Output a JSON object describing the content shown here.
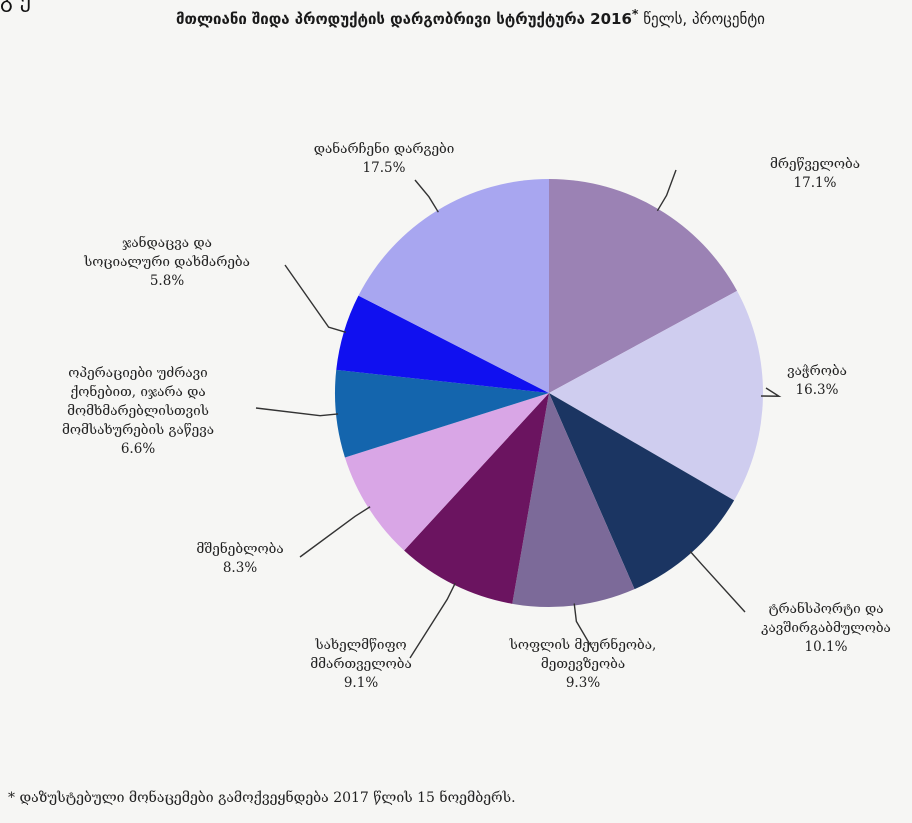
{
  "page": {
    "title_bold": "მთლიანი შიდა პროდუქტის დარგობრივი სტრუქტურა 2016",
    "title_mark": "*",
    "title_rest": " წელს, პროცენტი",
    "top_clip": "გ ე",
    "footnote": "* დაზუსტებული მონაცემები გამოქვეყნდება 2017 წლის 15 ნოემბერს."
  },
  "chart_data": {
    "type": "pie",
    "title": "მთლიანი შიდა პროდუქტის დარგობრივი სტრუქტურა 2016* წელს, პროცენტი",
    "unit": "%",
    "slices": [
      {
        "label": "მრეწველობა",
        "value": 17.1,
        "value_text": "17.1%",
        "color": "#9b82b4"
      },
      {
        "label": "ვაჭრობა",
        "value": 16.3,
        "value_text": "16.3%",
        "color": "#cfcdef"
      },
      {
        "label": "ტრანსპორტი და კავშირგაბმულობა",
        "value": 10.1,
        "value_text": "10.1%",
        "color": "#1b3562"
      },
      {
        "label": "სოფლის მეურნეობა, მეთევზეობა",
        "value": 9.3,
        "value_text": "9.3%",
        "color": "#7c6a99"
      },
      {
        "label": "სახელმწიფო მმართველობა",
        "value": 9.1,
        "value_text": "9.1%",
        "color": "#6b1460"
      },
      {
        "label": "მშენებლობა",
        "value": 8.3,
        "value_text": "8.3%",
        "color": "#d9a6e6"
      },
      {
        "label": "ოპერაციები უძრავი ქონებით, იჯარა და მომხმარებლისთვის მომსახურების გაწევა",
        "value": 6.6,
        "value_text": "6.6%",
        "color": "#1465ad"
      },
      {
        "label": "ჯანდაცვა და სოციალური დახმარება",
        "value": 5.8,
        "value_text": "5.8%",
        "color": "#1010f0"
      },
      {
        "label": "დანარჩენი დარგები",
        "value": 17.5,
        "value_text": "17.5%",
        "color": "#a8a6f0"
      }
    ],
    "labels_display": [
      {
        "lines": [
          "მრეწველობა"
        ]
      },
      {
        "lines": [
          "ვაჭრობა"
        ]
      },
      {
        "lines": [
          "ტრანსპორტი და",
          "კავშირგაბმულობა"
        ]
      },
      {
        "lines": [
          "სოფლის მეურნეობა,",
          "მეთევზეობა"
        ]
      },
      {
        "lines": [
          "სახელმწიფო",
          "მმართველობა"
        ]
      },
      {
        "lines": [
          "მშენებლობა"
        ]
      },
      {
        "lines": [
          "ოპერაციები უძრავი",
          "ქონებით, იჯარა და",
          "მომხმარებლისთვის",
          "მომსახურების გაწევა"
        ]
      },
      {
        "lines": [
          "ჯანდაცვა და",
          "სოციალური დახმარება"
        ]
      },
      {
        "lines": [
          "დანარჩენი დარგები"
        ]
      }
    ],
    "start_angle_deg": 0,
    "direction": "clockwise",
    "legend": "none"
  }
}
